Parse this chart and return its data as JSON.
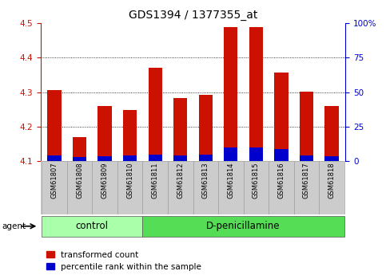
{
  "title": "GDS1394 / 1377355_at",
  "samples": [
    "GSM61807",
    "GSM61808",
    "GSM61809",
    "GSM61810",
    "GSM61811",
    "GSM61812",
    "GSM61813",
    "GSM61814",
    "GSM61815",
    "GSM61816",
    "GSM61817",
    "GSM61818"
  ],
  "red_values": [
    4.305,
    4.17,
    4.26,
    4.248,
    4.37,
    4.283,
    4.292,
    4.49,
    4.49,
    4.358,
    4.302,
    4.26
  ],
  "blue_values": [
    4.115,
    4.112,
    4.113,
    4.115,
    4.117,
    4.115,
    4.118,
    4.14,
    4.14,
    4.135,
    4.115,
    4.113
  ],
  "ylim_left": [
    4.1,
    4.5
  ],
  "ylim_right": [
    0,
    100
  ],
  "yticks_left": [
    4.1,
    4.2,
    4.3,
    4.4,
    4.5
  ],
  "yticks_right": [
    0,
    25,
    50,
    75,
    100
  ],
  "ytick_labels_right": [
    "0",
    "25",
    "50",
    "75",
    "100%"
  ],
  "bar_bottom": 4.1,
  "bar_width": 0.55,
  "control_samples": 4,
  "control_label": "control",
  "treatment_label": "D-penicillamine",
  "agent_label": "agent",
  "legend_red": "transformed count",
  "legend_blue": "percentile rank within the sample",
  "red_color": "#cc1100",
  "blue_color": "#0000cc",
  "bg_plot": "#ffffff",
  "bg_tick_area": "#cccccc",
  "bg_group_control": "#aaffaa",
  "bg_group_treatment": "#55dd55",
  "title_fontsize": 10,
  "tick_label_fontsize": 7.5,
  "sample_label_fontsize": 6.0,
  "group_label_fontsize": 8.5,
  "legend_fontsize": 7.5
}
